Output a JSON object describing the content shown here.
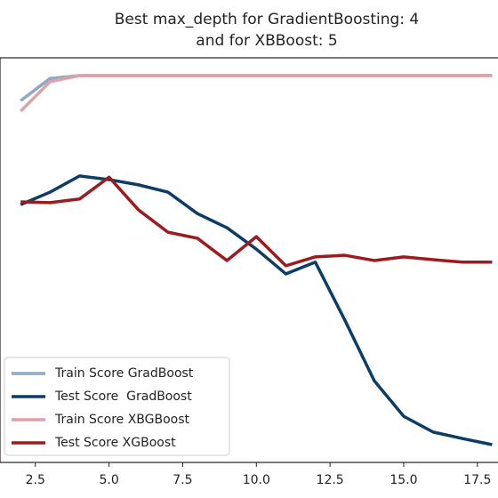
{
  "chart_data": {
    "type": "line",
    "title": [
      "Best max_depth for GradientBoosting: 4",
      "and for XBBoost: 5"
    ],
    "x": [
      2,
      3,
      4,
      5,
      6,
      7,
      8,
      9,
      10,
      11,
      12,
      13,
      14,
      15,
      16,
      17,
      18
    ],
    "series": [
      {
        "name": "Train Score GradBoost",
        "color": "#8fa8c4",
        "values": [
          0.894,
          0.949,
          0.956,
          0.956,
          0.956,
          0.956,
          0.956,
          0.956,
          0.956,
          0.956,
          0.956,
          0.956,
          0.956,
          0.956,
          0.956,
          0.956,
          0.956
        ]
      },
      {
        "name": "Test Score  GradBoost",
        "color": "#0b3d66",
        "values": [
          0.637,
          0.668,
          0.708,
          0.699,
          0.686,
          0.668,
          0.615,
          0.58,
          0.527,
          0.466,
          0.495,
          0.352,
          0.202,
          0.114,
          0.075,
          0.059,
          0.044
        ]
      },
      {
        "name": "Train Score XBGBoost",
        "color": "#e0a0a8",
        "values": [
          0.868,
          0.941,
          0.956,
          0.956,
          0.956,
          0.956,
          0.956,
          0.956,
          0.956,
          0.956,
          0.956,
          0.956,
          0.956,
          0.956,
          0.956,
          0.956,
          0.956
        ]
      },
      {
        "name": "Test Score XGBoost",
        "color": "#9b1b1e",
        "values": [
          0.644,
          0.642,
          0.651,
          0.705,
          0.624,
          0.569,
          0.554,
          0.499,
          0.558,
          0.486,
          0.508,
          0.512,
          0.499,
          0.508,
          0.501,
          0.495,
          0.495
        ]
      }
    ],
    "xlim": [
      1.3,
      18.2
    ],
    "xticks": [
      2.5,
      {
        "value": 5,
        "label": "5.0"
      },
      7.5,
      {
        "value": 10,
        "label": "10.0"
      },
      12.5,
      {
        "value": 15,
        "label": "15.0"
      },
      17.5
    ],
    "ylim": [
      0,
      1
    ],
    "legend": "lower left"
  }
}
